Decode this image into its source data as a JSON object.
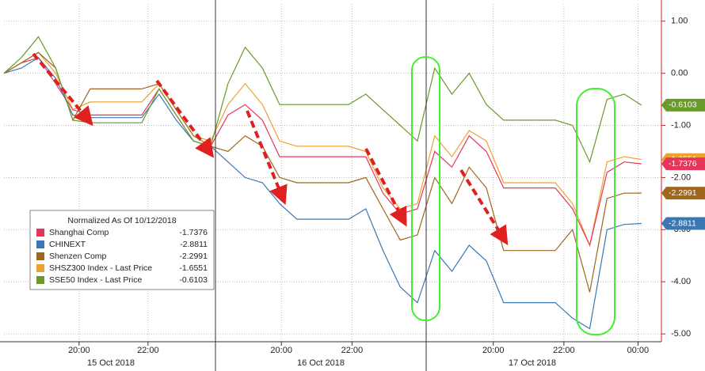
{
  "chart_data": {
    "type": "line",
    "legend_title": "Normalized As Of 10/12/2018",
    "x": [
      0,
      0.5,
      1,
      1.5,
      2,
      2.5,
      3,
      3.5,
      4,
      4.5,
      5,
      5.5,
      6,
      6.5,
      7,
      7.5,
      8,
      8.5,
      9,
      9.5,
      10,
      10.5,
      11,
      11.5,
      12,
      12.5,
      13,
      13.5,
      14,
      14.5,
      15,
      15.5,
      16,
      16.5,
      17,
      17.5,
      18,
      18.5
    ],
    "xlim": [
      0,
      19.08
    ],
    "xticks": [
      {
        "value": 2.18,
        "label": "20:00"
      },
      {
        "value": 4.18,
        "label": "22:00"
      },
      {
        "value": 8.05,
        "label": "20:00"
      },
      {
        "value": 10.1,
        "label": "22:00"
      },
      {
        "value": 14.2,
        "label": "20:00"
      },
      {
        "value": 16.25,
        "label": "22:00"
      },
      {
        "value": 18.4,
        "label": "00:00"
      }
    ],
    "dates": [
      "15 Oct 2018",
      "16 Oct 2018",
      "17 Oct 2018"
    ],
    "ylim": [
      -5.15,
      1.33
    ],
    "yticks": [
      {
        "value": 1,
        "label": "1.00"
      },
      {
        "value": 0,
        "label": "0.00"
      },
      {
        "value": -1,
        "label": "-1.00"
      },
      {
        "value": -2,
        "label": "-2.00"
      },
      {
        "value": -3,
        "label": "-3.00"
      },
      {
        "value": -4,
        "label": "-4.00"
      },
      {
        "value": -5,
        "label": "-5.00"
      }
    ],
    "grid": true,
    "legend": "lower left",
    "series": [
      {
        "name": "Shanghai Comp",
        "color": "#e8365a",
        "last": -1.7376,
        "values": [
          0,
          0.2,
          0.3,
          -0.2,
          -0.7,
          -0.8,
          -0.8,
          -0.8,
          -0.8,
          -0.3,
          -0.8,
          -1.3,
          -1.4,
          -0.8,
          -0.6,
          -0.9,
          -1.6,
          -1.6,
          -1.6,
          -1.6,
          -1.6,
          -1.6,
          -2.3,
          -2.7,
          -2.6,
          -1.5,
          -1.8,
          -1.2,
          -1.5,
          -2.2,
          -2.2,
          -2.2,
          -2.2,
          -2.6,
          -3.3,
          -1.9,
          -1.7,
          -1.7376
        ]
      },
      {
        "name": "CHINEXT",
        "color": "#3a78b4",
        "last": -2.8811,
        "values": [
          0,
          0.1,
          0.3,
          -0.1,
          -0.8,
          -0.85,
          -0.85,
          -0.85,
          -0.85,
          -0.4,
          -0.9,
          -1.3,
          -1.4,
          -1.7,
          -2.0,
          -2.1,
          -2.5,
          -2.8,
          -2.8,
          -2.8,
          -2.8,
          -2.6,
          -3.4,
          -4.1,
          -4.4,
          -3.4,
          -3.8,
          -3.3,
          -3.6,
          -4.4,
          -4.4,
          -4.4,
          -4.4,
          -4.7,
          -4.9,
          -3.0,
          -2.9,
          -2.8811
        ]
      },
      {
        "name": "Shenzen Comp",
        "color": "#a0661c",
        "last": -2.2991,
        "values": [
          0,
          0.2,
          0.4,
          0.1,
          -0.9,
          -0.3,
          -0.3,
          -0.3,
          -0.3,
          -0.2,
          -0.7,
          -1.2,
          -1.4,
          -1.5,
          -1.2,
          -1.4,
          -2.0,
          -2.1,
          -2.1,
          -2.1,
          -2.1,
          -2.0,
          -2.6,
          -3.2,
          -3.1,
          -2.0,
          -2.5,
          -1.8,
          -2.2,
          -3.4,
          -3.4,
          -3.4,
          -3.4,
          -3.0,
          -4.2,
          -2.4,
          -2.3,
          -2.2991
        ]
      },
      {
        "name": "SHSZ300 Index - Last Price",
        "color": "#f0a030",
        "last": -1.6551,
        "values": [
          0,
          0.2,
          0.4,
          0.0,
          -0.7,
          -0.55,
          -0.55,
          -0.55,
          -0.55,
          -0.2,
          -0.7,
          -1.2,
          -1.3,
          -0.6,
          -0.2,
          -0.6,
          -1.3,
          -1.4,
          -1.4,
          -1.4,
          -1.4,
          -1.5,
          -2.2,
          -2.6,
          -2.5,
          -1.2,
          -1.6,
          -1.1,
          -1.3,
          -2.1,
          -2.1,
          -2.1,
          -2.1,
          -2.5,
          -3.3,
          -1.7,
          -1.6,
          -1.6551
        ]
      },
      {
        "name": "SSE50 Index - Last Price",
        "color": "#6a9a2a",
        "last": -0.6103,
        "values": [
          0,
          0.3,
          0.7,
          0.1,
          -0.9,
          -0.95,
          -0.95,
          -0.95,
          -0.95,
          -0.3,
          -0.8,
          -1.3,
          -1.4,
          -0.2,
          0.5,
          0.1,
          -0.6,
          -0.6,
          -0.6,
          -0.6,
          -0.6,
          -0.4,
          -0.7,
          -1.0,
          -1.3,
          0.1,
          -0.4,
          0.0,
          -0.6,
          -0.9,
          -0.9,
          -0.9,
          -0.9,
          -1.0,
          -1.7,
          -0.5,
          -0.4,
          -0.6103
        ]
      }
    ]
  }
}
